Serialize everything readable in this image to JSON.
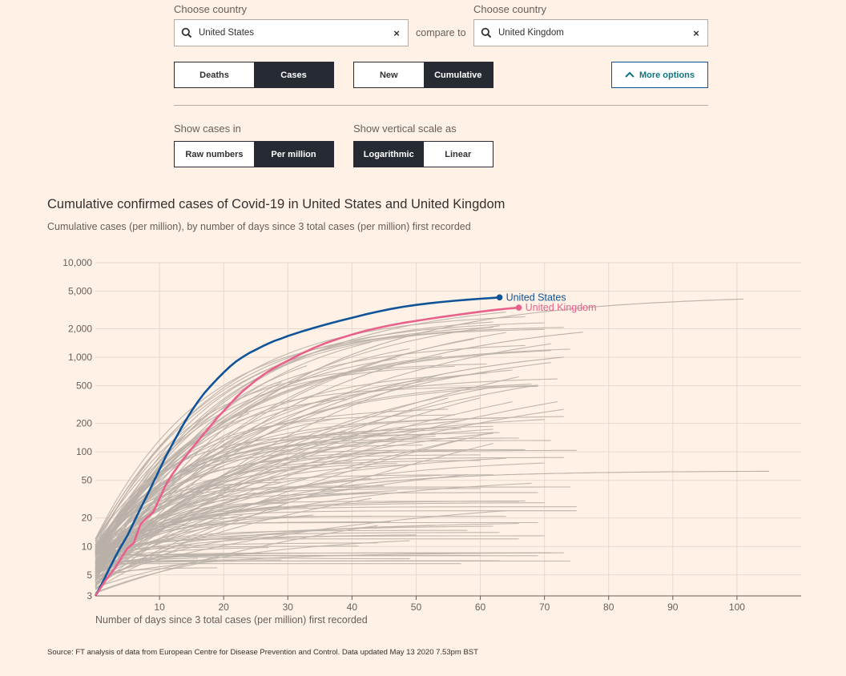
{
  "controls": {
    "country_label_1": "Choose country",
    "country_label_2": "Choose country",
    "country_1": "United States",
    "country_2": "United Kingdom",
    "compare_text": "compare to",
    "clear_symbol": "×",
    "metric_options": [
      "Deaths",
      "Cases"
    ],
    "metric_selected": "Cases",
    "mode_options": [
      "New",
      "Cumulative"
    ],
    "mode_selected": "Cumulative",
    "more_options_label": "More options",
    "show_cases_label": "Show cases in",
    "units_options": [
      "Raw numbers",
      "Per million"
    ],
    "units_selected": "Per million",
    "scale_label": "Show vertical scale as",
    "scale_options": [
      "Logarithmic",
      "Linear"
    ],
    "scale_selected": "Logarithmic"
  },
  "icons": {
    "search": "search-icon",
    "clear": "close-icon",
    "chevron": "chevron-up-icon"
  },
  "colors": {
    "background": "#fff1e5",
    "us": "#0f5499",
    "uk": "#e8618c",
    "others": "#b9b0a8",
    "dark": "#262a33",
    "teal": "#0d7680"
  },
  "chart_data": {
    "type": "line",
    "title": "Cumulative confirmed cases of Covid-19 in United States and United Kingdom",
    "subtitle": "Cumulative cases (per million), by number of days since 3 total cases (per million) first recorded",
    "xlabel": "Number of days since 3 total cases (per million) first recorded",
    "ylabel": "",
    "yscale": "log",
    "xlim": [
      0,
      110
    ],
    "ylim": [
      3,
      10000
    ],
    "x_ticks": [
      10,
      20,
      30,
      40,
      50,
      60,
      70,
      80,
      90,
      100
    ],
    "y_ticks": [
      3,
      5,
      10,
      20,
      50,
      100,
      200,
      500,
      1000,
      2000,
      5000,
      10000
    ],
    "y_tick_labels": [
      "3",
      "5",
      "10",
      "20",
      "50",
      "100",
      "200",
      "500",
      "1,000",
      "2,000",
      "5,000",
      "10,000"
    ],
    "grid": true,
    "series": [
      {
        "name": "United States",
        "highlight": true,
        "color": "#0f5499",
        "x": [
          0,
          1,
          2,
          3,
          4,
          5,
          6,
          7,
          8,
          9,
          10,
          11,
          12,
          13,
          14,
          15,
          16,
          17,
          18,
          19,
          20,
          21,
          22,
          23,
          24,
          25,
          26,
          27,
          28,
          29,
          30,
          32,
          34,
          36,
          38,
          40,
          42,
          44,
          46,
          48,
          50,
          52,
          54,
          56,
          58,
          60,
          62,
          63
        ],
        "y": [
          3,
          4,
          5.5,
          7.5,
          10,
          13,
          18,
          25,
          34,
          47,
          65,
          90,
          120,
          160,
          210,
          270,
          340,
          420,
          500,
          590,
          690,
          800,
          910,
          1010,
          1110,
          1200,
          1300,
          1400,
          1500,
          1580,
          1680,
          1860,
          2040,
          2230,
          2420,
          2620,
          2830,
          3040,
          3240,
          3420,
          3580,
          3720,
          3850,
          3960,
          4060,
          4160,
          4250,
          4300
        ]
      },
      {
        "name": "United Kingdom",
        "highlight": true,
        "color": "#e8618c",
        "x": [
          0,
          1,
          2,
          3,
          4,
          5,
          6,
          7,
          8,
          9,
          10,
          11,
          12,
          13,
          14,
          15,
          16,
          17,
          18,
          19,
          20,
          21,
          22,
          23,
          24,
          25,
          26,
          27,
          28,
          29,
          30,
          32,
          34,
          36,
          38,
          40,
          42,
          44,
          46,
          48,
          50,
          52,
          54,
          56,
          58,
          60,
          62,
          64,
          66
        ],
        "y": [
          3,
          3.8,
          4.8,
          5.8,
          7.5,
          9.5,
          11,
          17,
          20,
          23,
          32,
          45,
          58,
          72,
          88,
          108,
          130,
          158,
          190,
          230,
          270,
          320,
          380,
          440,
          500,
          570,
          640,
          710,
          780,
          850,
          920,
          1080,
          1250,
          1420,
          1580,
          1740,
          1900,
          2040,
          2180,
          2310,
          2430,
          2550,
          2670,
          2790,
          2910,
          3030,
          3150,
          3260,
          3350
        ]
      }
    ],
    "background_series_note": ""
  },
  "source_text": "Source: FT analysis of data from European Centre for Disease Prevention and Control. Data updated May 13 2020 7.53pm BST"
}
